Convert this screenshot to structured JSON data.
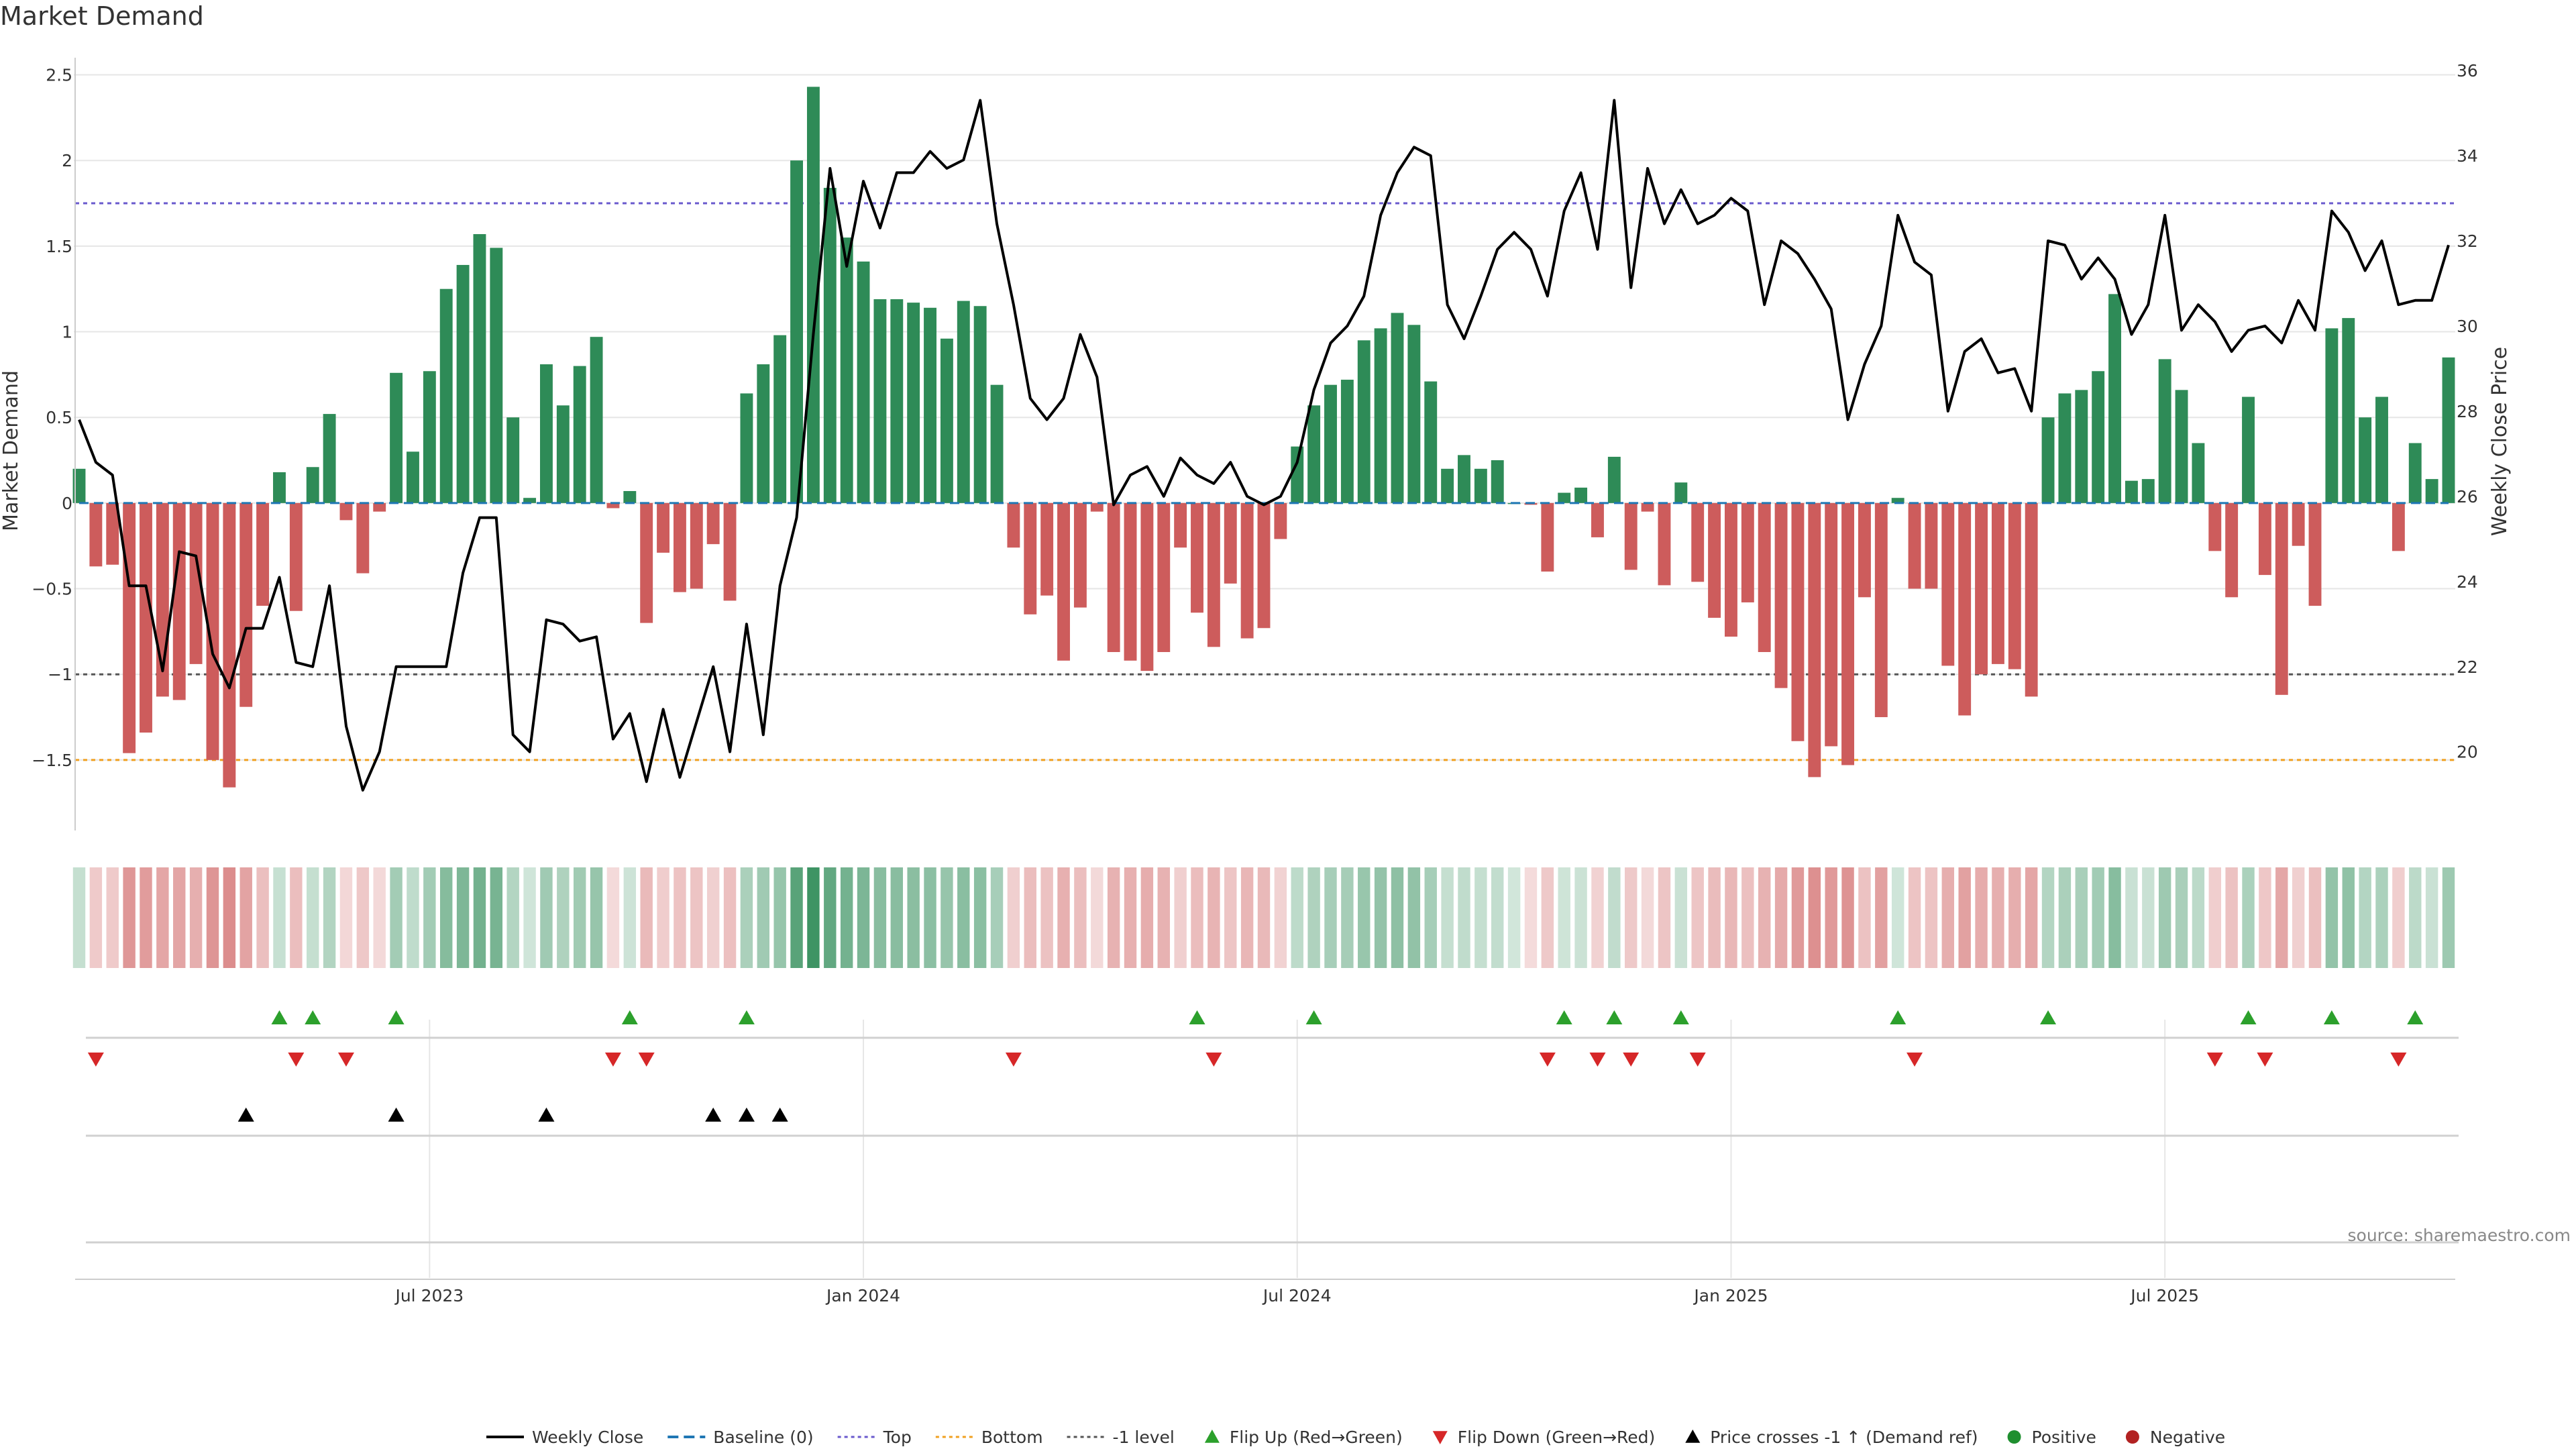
{
  "title": "Market Demand",
  "source": "source: sharemaestro.com",
  "colors": {
    "positive": "#2e8b57",
    "negative": "#cd5c5c",
    "price": "#000000",
    "top": "#6a5acd",
    "bottom": "#f0a020",
    "minus_one": "#555555",
    "baseline": "#1f77b4",
    "flip_up": "#2ca02c",
    "flip_down": "#d62728",
    "cross": "#000000",
    "grid": "#e6e6e6"
  },
  "chart_data": {
    "type": "bar+line",
    "title": "Market Demand",
    "ylabel_left": "Market Demand",
    "ylabel_right": "Weekly Close Price",
    "ylim_left": [
      -1.9,
      2.6
    ],
    "ylim_right": [
      18.2,
      36.3
    ],
    "yticks_left": [
      -1.5,
      -1,
      -0.5,
      0,
      0.5,
      1,
      1.5,
      2,
      2.5
    ],
    "ytick_labels_left": [
      "−1.5",
      "−1",
      "−0.5",
      "0",
      "0.5",
      "1",
      "1.5",
      "2",
      "2.5"
    ],
    "yticks_right": [
      20,
      22,
      24,
      26,
      28,
      30,
      32,
      34,
      36
    ],
    "x_tick_labels": [
      {
        "label": "Jul 2023",
        "week": 21
      },
      {
        "label": "Jan 2024",
        "week": 47
      },
      {
        "label": "Jul 2024",
        "week": 73
      },
      {
        "label": "Jan 2025",
        "week": 99
      },
      {
        "label": "Jul 2025",
        "week": 125
      }
    ],
    "reference_lines": {
      "top": 1.75,
      "bottom": -1.5,
      "minus_one": -1,
      "baseline": 0
    },
    "demand": [
      0.2,
      -0.37,
      -0.36,
      -1.46,
      -1.34,
      -1.13,
      -1.15,
      -0.94,
      -1.5,
      -1.66,
      -1.19,
      -0.6,
      0.18,
      -0.63,
      0.21,
      0.52,
      -0.1,
      -0.41,
      -0.05,
      0.76,
      0.3,
      0.77,
      1.25,
      1.39,
      1.57,
      1.49,
      0.5,
      0.03,
      0.81,
      0.57,
      0.8,
      0.97,
      -0.03,
      0.07,
      -0.7,
      -0.29,
      -0.52,
      -0.5,
      -0.24,
      -0.57,
      0.64,
      0.81,
      0.98,
      2.0,
      2.43,
      1.84,
      1.55,
      1.41,
      1.19,
      1.19,
      1.17,
      1.14,
      0.96,
      1.18,
      1.15,
      0.69,
      -0.26,
      -0.65,
      -0.54,
      -0.92,
      -0.61,
      -0.05,
      -0.87,
      -0.92,
      -0.98,
      -0.87,
      -0.26,
      -0.64,
      -0.84,
      -0.47,
      -0.79,
      -0.73,
      -0.21,
      0.33,
      0.57,
      0.69,
      0.72,
      0.95,
      1.02,
      1.11,
      1.04,
      0.71,
      0.2,
      0.28,
      0.2,
      0.25,
      0.0,
      -0.01,
      -0.4,
      0.06,
      0.09,
      -0.2,
      0.27,
      -0.39,
      -0.05,
      -0.48,
      0.12,
      -0.46,
      -0.67,
      -0.78,
      -0.58,
      -0.87,
      -1.08,
      -1.39,
      -1.6,
      -1.42,
      -1.53,
      -0.55,
      -1.25,
      0.03,
      -0.5,
      -0.5,
      -0.95,
      -1.24,
      -1.0,
      -0.94,
      -0.97,
      -1.13,
      0.5,
      0.64,
      0.66,
      0.77,
      1.22,
      0.13,
      0.14,
      0.84,
      0.66,
      0.35,
      -0.28,
      -0.55,
      0.62,
      -0.42,
      -1.12,
      -0.25,
      -0.6,
      1.02,
      1.08,
      0.5,
      0.62,
      -0.28,
      0.35,
      0.14,
      0.85
    ],
    "weekly_close": [
      27.8,
      26.8,
      26.5,
      23.9,
      23.9,
      21.9,
      24.7,
      24.6,
      22.3,
      21.5,
      22.9,
      22.9,
      24.1,
      22.1,
      22.0,
      23.9,
      20.6,
      19.1,
      20.0,
      22.0,
      22.0,
      22.0,
      22.0,
      24.2,
      25.5,
      25.5,
      20.4,
      20.0,
      23.1,
      23.0,
      22.6,
      22.7,
      20.3,
      20.9,
      19.3,
      21.0,
      19.4,
      20.7,
      22.0,
      20.0,
      23.0,
      20.4,
      23.9,
      25.5,
      29.8,
      33.7,
      31.4,
      33.4,
      32.3,
      33.6,
      33.6,
      34.1,
      33.7,
      33.9,
      35.3,
      32.4,
      30.5,
      28.3,
      27.8,
      28.3,
      29.8,
      28.8,
      25.8,
      26.5,
      26.7,
      26.0,
      26.9,
      26.5,
      26.3,
      26.8,
      26.0,
      25.8,
      26.0,
      26.8,
      28.5,
      29.6,
      30.0,
      30.7,
      32.6,
      33.6,
      34.2,
      34.0,
      30.5,
      29.7,
      30.7,
      31.8,
      32.2,
      31.8,
      30.7,
      32.7,
      33.6,
      31.8,
      35.3,
      30.9,
      33.7,
      32.4,
      33.2,
      32.4,
      32.6,
      33.0,
      32.7,
      30.5,
      32.0,
      31.7,
      31.1,
      30.4,
      27.8,
      29.1,
      30.0,
      32.6,
      31.5,
      31.2,
      28.0,
      29.4,
      29.7,
      28.9,
      29.0,
      28.0,
      32.0,
      31.9,
      31.1,
      31.6,
      31.1,
      29.8,
      30.5,
      32.6,
      29.9,
      30.5,
      30.1,
      29.4,
      29.9,
      30.0,
      29.6,
      30.6,
      29.9,
      32.7,
      32.2,
      31.3,
      32.0,
      30.5,
      30.6,
      30.6,
      31.9
    ],
    "heat_strip": "per-week intensity strip colored by demand sign and magnitude",
    "flip_up_weeks": [
      12,
      14,
      19,
      33,
      40,
      67,
      74,
      89,
      92,
      96,
      109,
      118,
      130,
      135,
      140
    ],
    "flip_down_weeks": [
      1,
      13,
      16,
      32,
      34,
      56,
      68,
      88,
      91,
      93,
      97,
      110,
      128,
      131,
      139
    ],
    "cross_weeks": [
      10,
      19,
      28,
      38,
      40,
      42
    ],
    "legend": [
      {
        "label": "Weekly Close",
        "kind": "solid-line"
      },
      {
        "label": "Baseline (0)",
        "kind": "dashed-line"
      },
      {
        "label": "Top",
        "kind": "dotted-line"
      },
      {
        "label": "Bottom",
        "kind": "dotted-line"
      },
      {
        "label": "-1 level",
        "kind": "dotted-line"
      },
      {
        "label": "Flip Up (Red→Green)",
        "kind": "triangle-up"
      },
      {
        "label": "Flip Down (Green→Red)",
        "kind": "triangle-down"
      },
      {
        "label": "Price crosses -1 ↑ (Demand ref)",
        "kind": "triangle-up"
      },
      {
        "label": "Positive",
        "kind": "dot"
      },
      {
        "label": "Negative",
        "kind": "dot"
      }
    ]
  }
}
